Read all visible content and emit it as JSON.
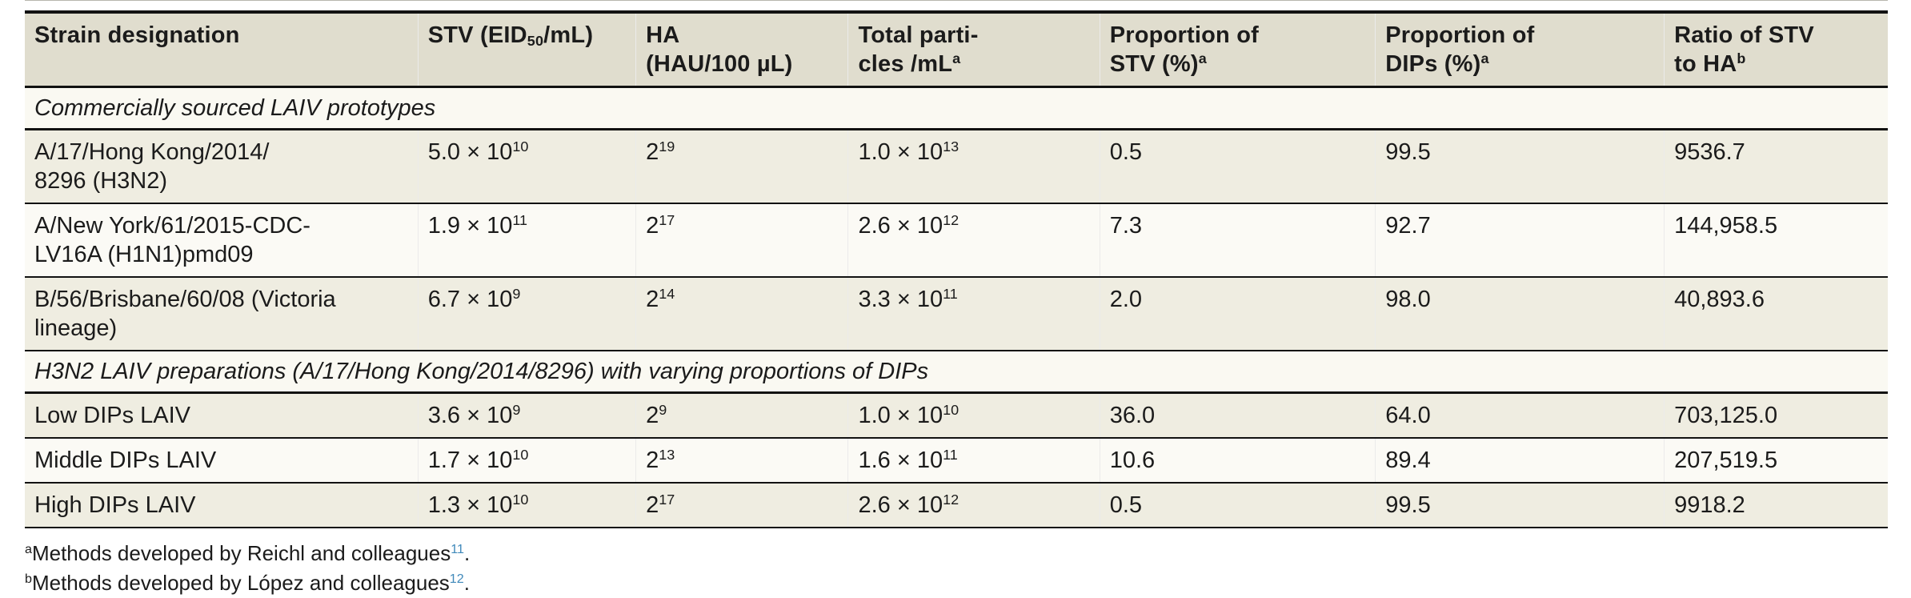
{
  "colors": {
    "header_bg": "#e0ddce",
    "row_beige": "#efede1",
    "row_white": "#fbfaf5",
    "section_bg": "#faf9f2",
    "rule_black": "#121212",
    "reference_blue": "#4089ba",
    "text": "#1b1b1b"
  },
  "table": {
    "columns": [
      {
        "label": "Strain designation",
        "width": "21.1%"
      },
      {
        "label": "STV (EID_{50}/mL)",
        "width": "11.7%"
      },
      {
        "label": "HA\n(HAU/100 µL)",
        "width": "11.4%"
      },
      {
        "label": "Total parti-\ncles /mL^{a}",
        "width": "13.5%"
      },
      {
        "label": "Proportion of\nSTV (%)^{a}",
        "width": "14.8%"
      },
      {
        "label": "Proportion of\nDIPs (%)^{a}",
        "width": "15.5%"
      },
      {
        "label": "Ratio of STV\nto HA^{b}",
        "width": "12.0%"
      }
    ],
    "sections": [
      {
        "title": "Commercially sourced LAIV prototypes",
        "rows": [
          {
            "two_line": true,
            "cells": [
              "A/17/Hong Kong/2014/\n8296 (H3N2)",
              "5.0 × 10^{10}",
              "2^{19}",
              "1.0 × 10^{13}",
              "0.5",
              "99.5",
              "9536.7"
            ]
          },
          {
            "two_line": true,
            "cells": [
              "A/New York/61/2015-CDC-\nLV16A (H1N1)pmd09",
              "1.9 × 10^{11}",
              "2^{17}",
              "2.6 × 10^{12}",
              "7.3",
              "92.7",
              "144,958.5"
            ]
          },
          {
            "two_line": true,
            "cells": [
              "B/56/Brisbane/60/08 (Victoria\nlineage)",
              "6.7 × 10^{9}",
              "2^{14}",
              "3.3 × 10^{11}",
              "2.0",
              "98.0",
              "40,893.6"
            ]
          }
        ]
      },
      {
        "title": "H3N2 LAIV preparations (A/17/Hong Kong/2014/8296) with varying proportions of DIPs",
        "rows": [
          {
            "two_line": false,
            "cells": [
              "Low DIPs LAIV",
              "3.6 × 10^{9}",
              "2^{9}",
              "1.0 × 10^{10}",
              "36.0",
              "64.0",
              "703,125.0"
            ]
          },
          {
            "two_line": false,
            "cells": [
              "Middle DIPs LAIV",
              "1.7 × 10^{10}",
              "2^{13}",
              "1.6 × 10^{11}",
              "10.6",
              "89.4",
              "207,519.5"
            ]
          },
          {
            "two_line": false,
            "cells": [
              "High DIPs LAIV",
              "1.3 × 10^{10}",
              "2^{17}",
              "2.6 × 10^{12}",
              "0.5",
              "99.5",
              "9918.2"
            ]
          }
        ]
      }
    ],
    "footnotes": [
      {
        "marker": "a",
        "text": "Methods developed by Reichl and colleagues",
        "reference": "11",
        "suffix": "."
      },
      {
        "marker": "b",
        "text": "Methods developed by López and colleagues",
        "reference": "12",
        "suffix": "."
      }
    ]
  },
  "chart_data": {
    "type": "table",
    "columns": [
      "Strain designation",
      "STV (EID50/mL)",
      "HA (HAU/100 µL)",
      "Total particles /mL (a)",
      "Proportion of STV (%) (a)",
      "Proportion of DIPs (%) (a)",
      "Ratio of STV to HA (b)"
    ],
    "sections": [
      {
        "title": "Commercially sourced LAIV prototypes",
        "rows": [
          [
            "A/17/Hong Kong/2014/8296 (H3N2)",
            "5.0 × 10^10",
            "2^19",
            "1.0 × 10^13",
            0.5,
            99.5,
            9536.7
          ],
          [
            "A/New York/61/2015-CDC-LV16A (H1N1)pmd09",
            "1.9 × 10^11",
            "2^17",
            "2.6 × 10^12",
            7.3,
            92.7,
            144958.5
          ],
          [
            "B/56/Brisbane/60/08 (Victoria lineage)",
            "6.7 × 10^9",
            "2^14",
            "3.3 × 10^11",
            2.0,
            98.0,
            40893.6
          ]
        ]
      },
      {
        "title": "H3N2 LAIV preparations (A/17/Hong Kong/2014/8296) with varying proportions of DIPs",
        "rows": [
          [
            "Low DIPs LAIV",
            "3.6 × 10^9",
            "2^9",
            "1.0 × 10^10",
            36.0,
            64.0,
            703125.0
          ],
          [
            "Middle DIPs LAIV",
            "1.7 × 10^10",
            "2^13",
            "1.6 × 10^11",
            10.6,
            89.4,
            207519.5
          ],
          [
            "High DIPs LAIV",
            "1.3 × 10^10",
            "2^17",
            "2.6 × 10^12",
            0.5,
            99.5,
            9918.2
          ]
        ]
      }
    ],
    "footnotes": [
      "a: Methods developed by Reichl and colleagues [ref 11].",
      "b: Methods developed by López and colleagues [ref 12]."
    ]
  }
}
